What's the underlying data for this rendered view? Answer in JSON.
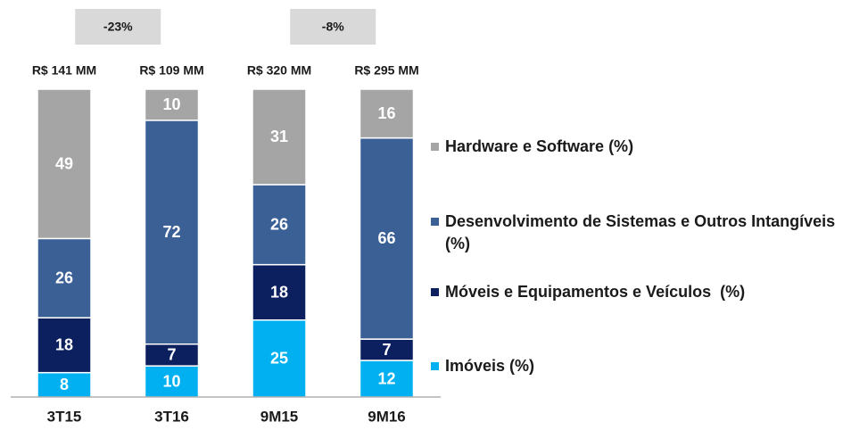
{
  "chart_data": {
    "type": "stacked-bar",
    "categories": [
      "3T15",
      "3T16",
      "9M15",
      "9M16"
    ],
    "totals": [
      "R$ 141 MM",
      "R$ 109 MM",
      "R$ 320 MM",
      "R$ 295 MM"
    ],
    "changes": [
      {
        "label": "-23%",
        "from": 0,
        "to": 1
      },
      {
        "label": "-8%",
        "from": 2,
        "to": 3
      }
    ],
    "series": [
      {
        "name": "Imóveis (%)",
        "color": "#00b0f0",
        "values": [
          8,
          10,
          25,
          12
        ]
      },
      {
        "name": "Móveis e Equipamentos e Veículos  (%)",
        "color": "#0c1f5e",
        "values": [
          18,
          7,
          18,
          7
        ]
      },
      {
        "name": "Desenvolvimento de Sistemas e Outros Intangíveis (%)",
        "color": "#3a6096",
        "values": [
          26,
          72,
          26,
          66
        ]
      },
      {
        "name": "Hardware e Software (%)",
        "color": "#a5a5a5",
        "values": [
          49,
          10,
          31,
          16
        ]
      }
    ]
  }
}
